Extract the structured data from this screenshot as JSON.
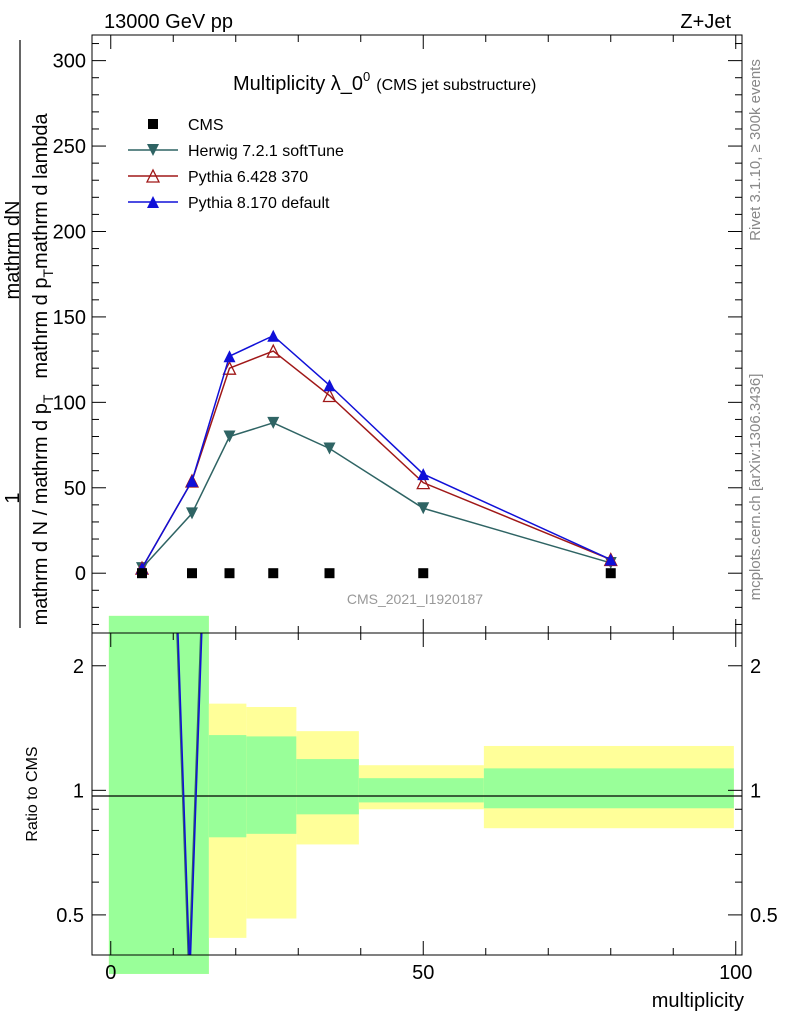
{
  "header": {
    "energy": "13000 GeV pp",
    "process": "Z+Jet"
  },
  "side_labels": {
    "rivet": "Rivet 3.1.10, ≥ 300k events",
    "mcplots": "mcplots.cern.ch [arXiv:1306.3436]"
  },
  "chart_data": [
    {
      "type": "line",
      "title_main": "Multiplicity λ_0",
      "title_sup": "0",
      "title_sub": "(CMS jet substructure)",
      "watermark": "CMS_2021_I1920187",
      "ylabel_top": "1",
      "ylabel_numerator": "mathrm dN",
      "ylabel_numerator_2": "mathrm d p",
      "ylabel_numerator_3": "mathrm d lambda",
      "ylabel_sub": "T",
      "ylabel_denominator": "mathrm d N / mathrm d p",
      "ylabel_den_sub": "T",
      "ylim": [
        -35,
        315
      ],
      "yticks": [
        0,
        50,
        100,
        150,
        200,
        250,
        300
      ],
      "xlim": [
        -3,
        101
      ],
      "series": [
        {
          "name": "CMS",
          "color": "#000000",
          "marker": "square",
          "x": [
            5,
            13,
            19,
            26,
            35,
            50,
            80
          ],
          "y": [
            0,
            0,
            0,
            0,
            0,
            0,
            0
          ]
        },
        {
          "name": "Herwig 7.2.1 softTune",
          "color": "#2f6464",
          "marker": "triangle-down",
          "x": [
            5,
            13,
            19,
            26,
            35,
            50,
            80
          ],
          "y": [
            3,
            35,
            80,
            88,
            73,
            38,
            6
          ]
        },
        {
          "name": "Pythia 6.428 370",
          "color": "#a01818",
          "marker": "triangle-up-open",
          "x": [
            5,
            13,
            19,
            26,
            35,
            50,
            80
          ],
          "y": [
            3,
            54,
            120,
            130,
            104,
            53,
            8
          ]
        },
        {
          "name": "Pythia 8.170 default",
          "color": "#1010d8",
          "marker": "triangle-up",
          "x": [
            5,
            13,
            19,
            26,
            35,
            50,
            80
          ],
          "y": [
            3,
            54,
            127,
            139,
            110,
            58,
            8
          ]
        }
      ]
    },
    {
      "type": "area",
      "ylabel": "Ratio to CMS",
      "xlabel": "multiplicity",
      "ylim": [
        0.4,
        2.4
      ],
      "yscale": "log",
      "yticks": [
        0.5,
        1,
        2
      ],
      "yticklabels": [
        "0.5",
        "1",
        "2"
      ],
      "xlim": [
        -3,
        101
      ],
      "xticks": [
        0,
        50,
        100
      ],
      "xticklabels": [
        "0",
        "50",
        "100"
      ],
      "bins": [
        {
          "lo": -0.3,
          "hi": 15.7,
          "stat_lo": 0.3,
          "stat_hi": 3.0,
          "tot_lo": 0.3,
          "tot_hi": 3.0
        },
        {
          "lo": 15.7,
          "hi": 21.7,
          "stat_lo": 0.77,
          "stat_hi": 1.36,
          "tot_lo": 0.44,
          "tot_hi": 1.62
        },
        {
          "lo": 21.7,
          "hi": 29.7,
          "stat_lo": 0.785,
          "stat_hi": 1.35,
          "tot_lo": 0.49,
          "tot_hi": 1.59
        },
        {
          "lo": 29.7,
          "hi": 39.7,
          "stat_lo": 0.875,
          "stat_hi": 1.19,
          "tot_lo": 0.74,
          "tot_hi": 1.39
        },
        {
          "lo": 39.7,
          "hi": 59.7,
          "stat_lo": 0.935,
          "stat_hi": 1.07,
          "tot_lo": 0.9,
          "tot_hi": 1.15
        },
        {
          "lo": 59.7,
          "hi": 99.7,
          "stat_lo": 0.905,
          "stat_hi": 1.13,
          "tot_lo": 0.81,
          "tot_hi": 1.28
        }
      ],
      "colors": {
        "stat": "#99ff99",
        "total": "#ffff99"
      },
      "mc_ratio": {
        "color": "#1010d8",
        "color2": "#2f6464",
        "x": [
          10.5,
          12.5,
          14.5
        ],
        "y": [
          3.0,
          0.35,
          3.0
        ]
      }
    }
  ]
}
